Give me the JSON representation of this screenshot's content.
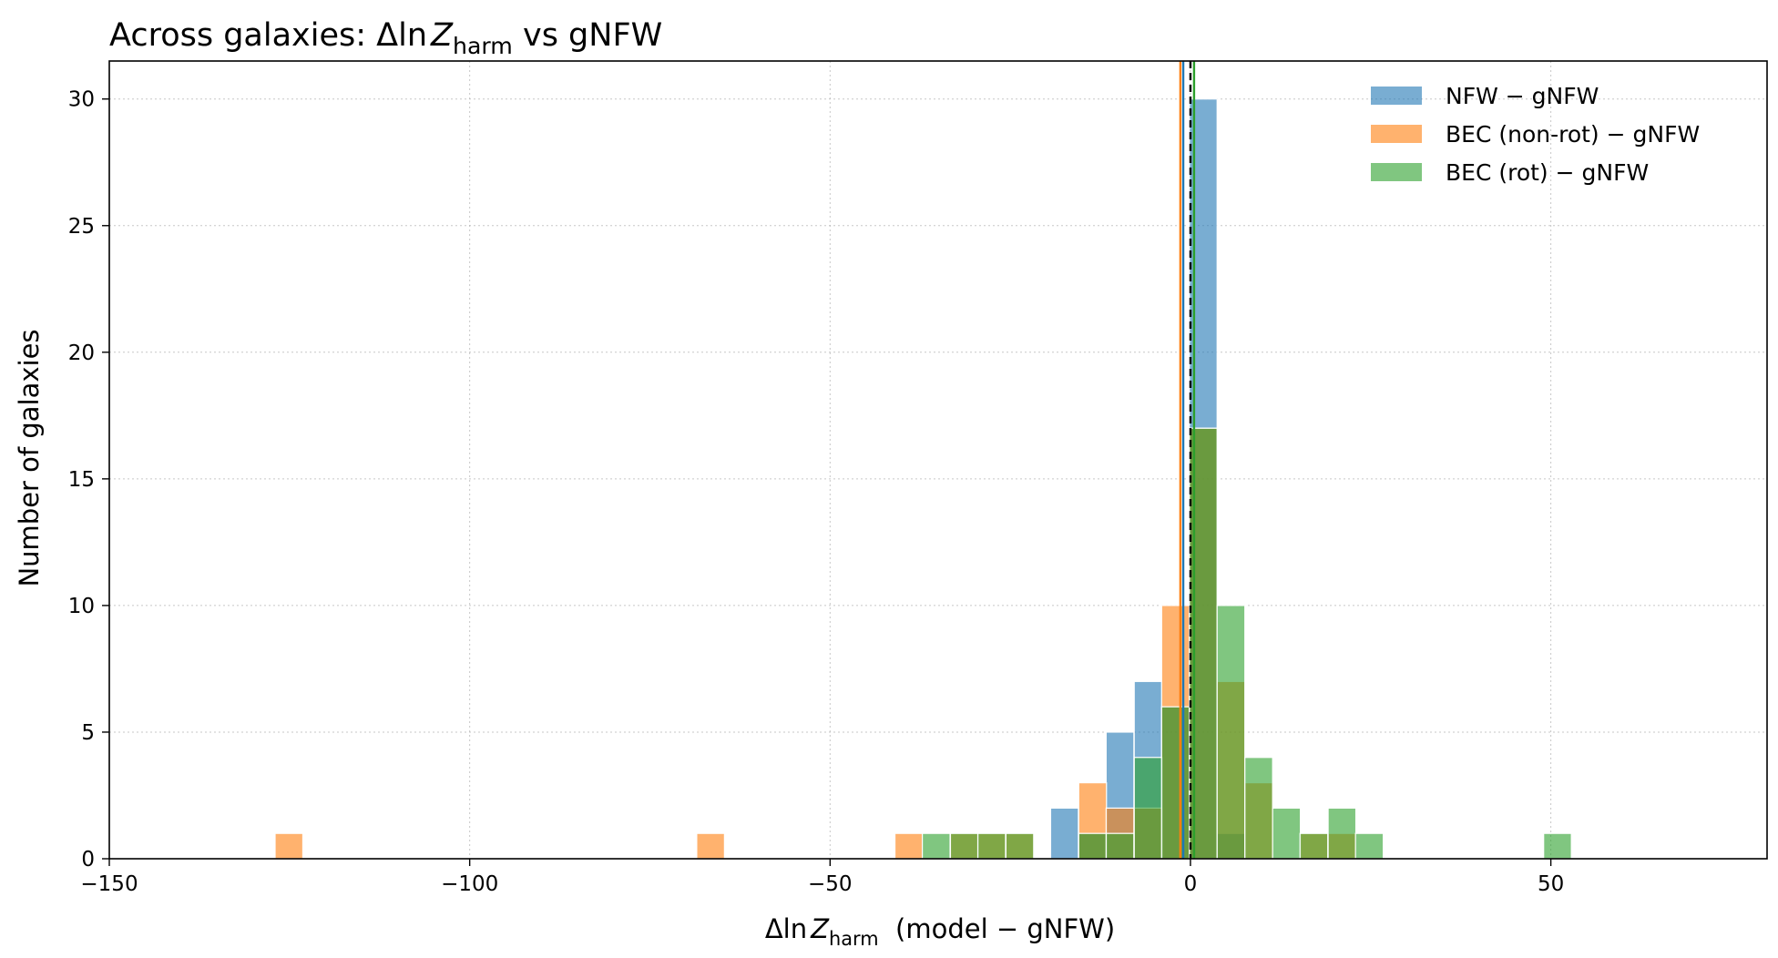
{
  "chart_data": {
    "type": "bar",
    "title_prefix": "Across galaxies: Δln",
    "title_var": "Z",
    "title_sub": "harm",
    "title_suffix": " vs gNFW",
    "xlabel_prefix": "Δln",
    "xlabel_var": "Z",
    "xlabel_sub": "harm",
    "xlabel_suffix": "  (model − gNFW)",
    "ylabel": "Number of galaxies",
    "xlim": [
      -150,
      80
    ],
    "ylim": [
      0,
      31.5
    ],
    "xticks": [
      -150,
      -100,
      -50,
      0,
      50
    ],
    "xtick_labels": [
      "−150",
      "−100",
      "−50",
      "0",
      "50"
    ],
    "yticks": [
      0,
      5,
      10,
      15,
      20,
      25,
      30
    ],
    "ytick_labels": [
      "0",
      "5",
      "10",
      "15",
      "20",
      "25",
      "30"
    ],
    "grid": true,
    "legend_position": "top-right",
    "bin_width": 3.85,
    "bin_start": -127.0,
    "series": [
      {
        "name": "NFW − gNFW",
        "color": "#1f77b4",
        "bars": [
          {
            "x": -19.4,
            "count": 2
          },
          {
            "x": -15.5,
            "count": 1
          },
          {
            "x": -11.7,
            "count": 5
          },
          {
            "x": -7.8,
            "count": 7
          },
          {
            "x": -4.0,
            "count": 6
          },
          {
            "x": -0.15,
            "count": 30
          },
          {
            "x": 3.7,
            "count": 1
          }
        ]
      },
      {
        "name": "BEC (non-rot) − gNFW",
        "color": "#ff7f0e",
        "bars": [
          {
            "x": -127.0,
            "count": 1
          },
          {
            "x": -68.5,
            "count": 1
          },
          {
            "x": -41.0,
            "count": 1
          },
          {
            "x": -33.3,
            "count": 1
          },
          {
            "x": -29.5,
            "count": 1
          },
          {
            "x": -25.6,
            "count": 1
          },
          {
            "x": -15.5,
            "count": 3
          },
          {
            "x": -11.7,
            "count": 2
          },
          {
            "x": -7.8,
            "count": 2
          },
          {
            "x": -4.0,
            "count": 10
          },
          {
            "x": -0.15,
            "count": 17
          },
          {
            "x": 3.7,
            "count": 7
          },
          {
            "x": 7.55,
            "count": 3
          },
          {
            "x": 15.2,
            "count": 1
          },
          {
            "x": 19.1,
            "count": 1
          }
        ]
      },
      {
        "name": "BEC (rot) − gNFW",
        "color": "#2ca02c",
        "bars": [
          {
            "x": -37.2,
            "count": 1
          },
          {
            "x": -33.3,
            "count": 1
          },
          {
            "x": -29.5,
            "count": 1
          },
          {
            "x": -25.6,
            "count": 1
          },
          {
            "x": -15.5,
            "count": 1
          },
          {
            "x": -11.7,
            "count": 1
          },
          {
            "x": -7.8,
            "count": 4
          },
          {
            "x": -4.0,
            "count": 6
          },
          {
            "x": -0.15,
            "count": 17
          },
          {
            "x": 3.7,
            "count": 10
          },
          {
            "x": 7.55,
            "count": 4
          },
          {
            "x": 11.4,
            "count": 2
          },
          {
            "x": 15.2,
            "count": 1
          },
          {
            "x": 19.1,
            "count": 2
          },
          {
            "x": 22.9,
            "count": 1
          },
          {
            "x": 49.0,
            "count": 1
          }
        ]
      }
    ],
    "vertical_lines": [
      {
        "name": "NFW median",
        "x": -1.0,
        "color": "#1f77b4",
        "style": "solid"
      },
      {
        "name": "BEC (non-rot) median",
        "x": -1.4,
        "color": "#ff7f0e",
        "style": "solid"
      },
      {
        "name": "BEC (rot) median",
        "x": 0.5,
        "color": "#2ca02c",
        "style": "solid"
      },
      {
        "name": "zero",
        "x": 0,
        "color": "#000000",
        "style": "dashed"
      }
    ]
  }
}
